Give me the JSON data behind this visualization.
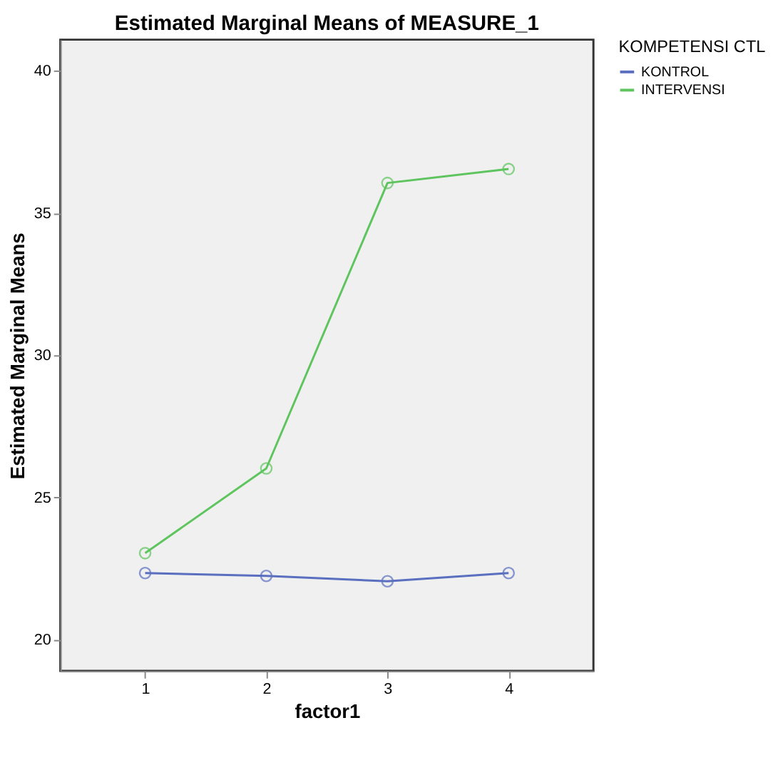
{
  "chart_data": {
    "type": "line",
    "title": "Estimated Marginal Means of MEASURE_1",
    "xlabel": "factor1",
    "ylabel": "Estimated Marginal Means",
    "legend_title": "KOMPETENSI CTL",
    "x": [
      1,
      2,
      3,
      4
    ],
    "series": [
      {
        "name": "KONTROL",
        "color": "#5a6fbf",
        "values": [
          22.34,
          22.24,
          22.05,
          22.34
        ]
      },
      {
        "name": "INTERVENSI",
        "color": "#5ec45e",
        "values": [
          23.04,
          26.02,
          36.06,
          36.55
        ]
      }
    ],
    "xlim": [
      0.3,
      4.7
    ],
    "xticks": [
      1,
      2,
      3,
      4
    ],
    "ylim": [
      18.9,
      41.1
    ],
    "yticks": [
      20,
      25,
      30,
      35,
      40
    ],
    "grid": false,
    "legend": "top right",
    "marker": "circle",
    "line_style": "solid"
  }
}
